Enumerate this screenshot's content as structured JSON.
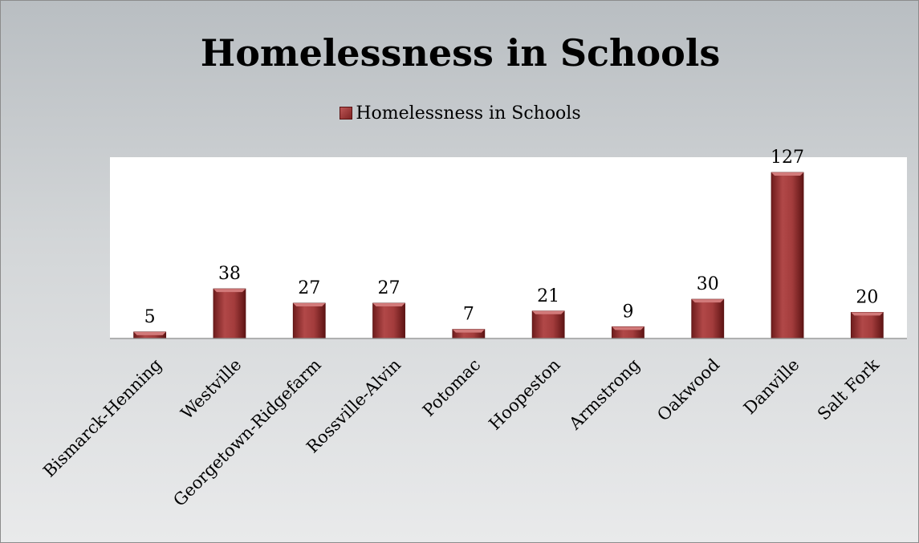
{
  "chart_data": {
    "type": "bar",
    "title": "Homelessness in Schools",
    "categories": [
      "Bismarck-Henning",
      "Westville",
      "Georgetown-Ridgefarm",
      "Rossville-Alvin",
      "Potomac",
      "Hoopeston",
      "Armstrong",
      "Oakwood",
      "Danville",
      "Salt Fork"
    ],
    "series": [
      {
        "name": "Homelessness in Schools",
        "values": [
          5,
          38,
          27,
          27,
          7,
          21,
          9,
          30,
          127,
          20
        ]
      }
    ],
    "xlabel": "",
    "ylabel": "",
    "ylim": [
      0,
      127
    ],
    "grid": false,
    "legend_position": "top",
    "colors": {
      "bar": "#9b3535",
      "bar_dark": "#6a1818",
      "bar_light": "#c86a6a"
    }
  }
}
